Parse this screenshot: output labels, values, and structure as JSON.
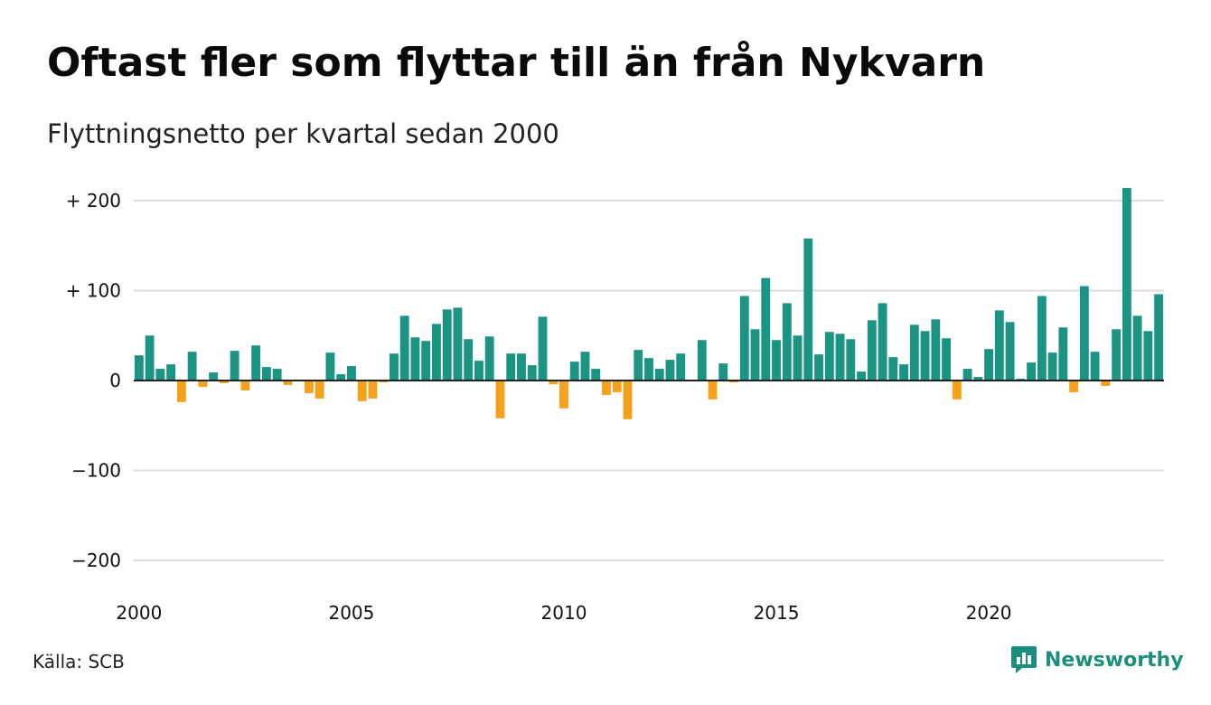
{
  "header": {
    "title": "Oftast fler som flyttar till än från Nykvarn",
    "subtitle": "Flyttningsnetto per kvartal sedan 2000"
  },
  "footer": {
    "source": "Källa: SCB",
    "brand": "Newsworthy"
  },
  "colors": {
    "positive": "#1b9484",
    "negative": "#f5a11c",
    "grid": "#dddddd",
    "zero_line": "#222222",
    "brand": "#1b8f7c"
  },
  "icons": {
    "brand_logo": "newsworthy-logo-icon"
  },
  "chart_data": {
    "type": "bar",
    "title": "Oftast fler som flyttar till än från Nykvarn",
    "subtitle": "Flyttningsnetto per kvartal sedan 2000",
    "xlabel": "",
    "ylabel": "",
    "ylim": [
      -220,
      220
    ],
    "grid": true,
    "legend": "none",
    "y_ticks": [
      200,
      100,
      0,
      -100,
      -200
    ],
    "y_tick_labels": [
      "+ 200",
      "+ 100",
      "0",
      "−100",
      "−200"
    ],
    "x_tick_labels": [
      "2000",
      "2005",
      "2010",
      "2015",
      "2020"
    ],
    "x_tick_years": [
      2000,
      2005,
      2010,
      2015,
      2020
    ],
    "first_period": "2000 Q1",
    "values": [
      28,
      50,
      13,
      18,
      -24,
      32,
      -7,
      9,
      -3,
      33,
      -11,
      39,
      15,
      13,
      -5,
      0,
      -14,
      -20,
      31,
      7,
      16,
      -23,
      -20,
      -2,
      30,
      72,
      48,
      44,
      63,
      79,
      81,
      46,
      22,
      49,
      -42,
      30,
      30,
      17,
      71,
      -4,
      -31,
      21,
      32,
      13,
      -16,
      -13,
      -43,
      34,
      25,
      13,
      23,
      30,
      0,
      45,
      -21,
      19,
      -2,
      94,
      57,
      114,
      45,
      86,
      50,
      158,
      29,
      54,
      52,
      46,
      10,
      67,
      86,
      26,
      18,
      62,
      55,
      68,
      47,
      -21,
      13,
      4,
      35,
      78,
      65,
      2,
      20,
      94,
      31,
      59,
      -13,
      105,
      32,
      -6,
      57,
      214,
      72,
      55,
      96
    ]
  }
}
